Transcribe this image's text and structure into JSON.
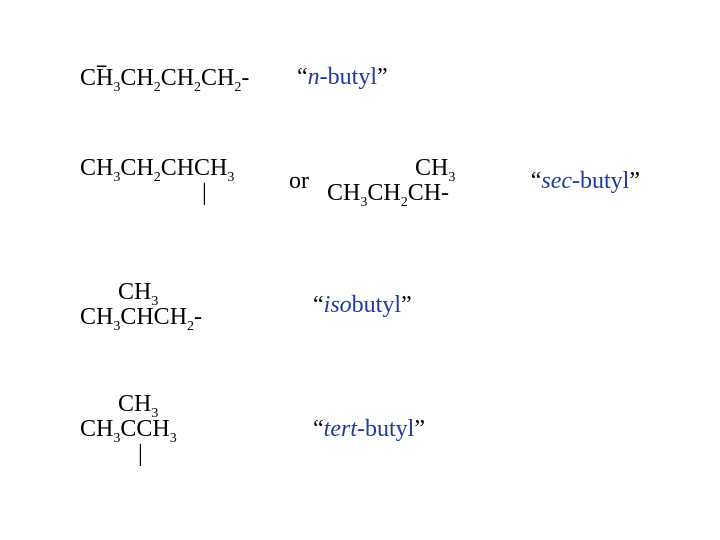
{
  "colors": {
    "text": "#000000",
    "accent": "#1f3b9b",
    "background": "#ffffff"
  },
  "typography": {
    "font_family": "Times New Roman",
    "base_size_pt": 18,
    "sub_size_pt": 11
  },
  "rows": [
    {
      "id": "n-butyl",
      "formula_html": "CH<sub>3</sub>CH<sub>2</sub>CH<sub>2</sub>CH<sub>2</sub>-",
      "label_prefix": "n",
      "label_suffix": "-butyl",
      "quote_open": "“",
      "quote_close": "”"
    },
    {
      "id": "sec-butyl",
      "formula_html": "CH<sub>3</sub>CH<sub>2</sub>CHCH<sub>3</sub>",
      "formula_pipe": "|",
      "or_text": "or",
      "alt_top_html": "CH<sub>3</sub>",
      "alt_bottom_html": "CH<sub>3</sub>CH<sub>2</sub>CH-",
      "label_prefix": "sec",
      "label_suffix": "-butyl",
      "quote_open": "“",
      "quote_close": "”"
    },
    {
      "id": "isobutyl",
      "top_html": "CH<sub>3</sub>",
      "formula_html": "CH<sub>3</sub>CHCH<sub>2</sub>-",
      "label_prefix": "iso",
      "label_suffix": "butyl",
      "quote_open": "“",
      "quote_close": "”"
    },
    {
      "id": "tert-butyl",
      "top_html": "CH<sub>3</sub>",
      "formula_html": "CH<sub>3</sub>CCH<sub>3</sub>",
      "formula_pipe": "|",
      "label_prefix": "tert",
      "label_suffix": "-butyl",
      "quote_open": "“",
      "quote_close": "”"
    }
  ]
}
